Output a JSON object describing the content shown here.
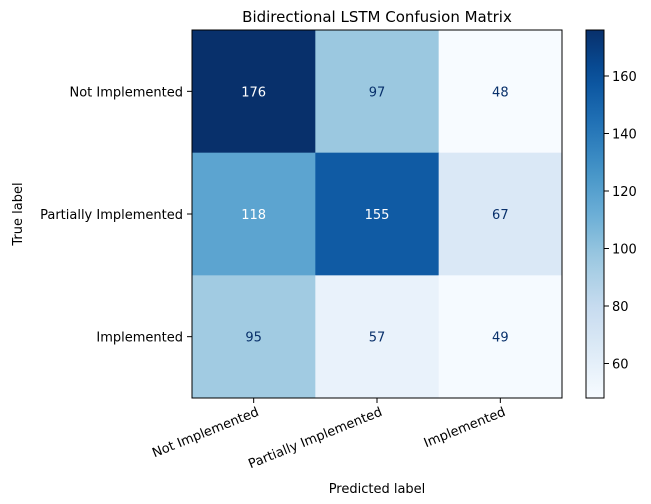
{
  "chart_data": {
    "type": "heatmap",
    "title": "Bidirectional LSTM Confusion Matrix",
    "xlabel": "Predicted label",
    "ylabel": "True label",
    "row_labels": [
      "Not Implemented",
      "Partially Implemented",
      "Implemented"
    ],
    "col_labels": [
      "Not Implemented",
      "Partially Implemented",
      "Implemented"
    ],
    "values": [
      [
        176,
        97,
        48
      ],
      [
        118,
        155,
        67
      ],
      [
        95,
        57,
        49
      ]
    ],
    "colormap": "Blues",
    "vmin": 48,
    "vmax": 176,
    "colorbar_ticks": [
      60,
      80,
      100,
      120,
      140,
      160
    ],
    "x_tick_rotation_deg": 22,
    "text_color_light": "#ffffff",
    "text_color_dark": "#08306b"
  }
}
